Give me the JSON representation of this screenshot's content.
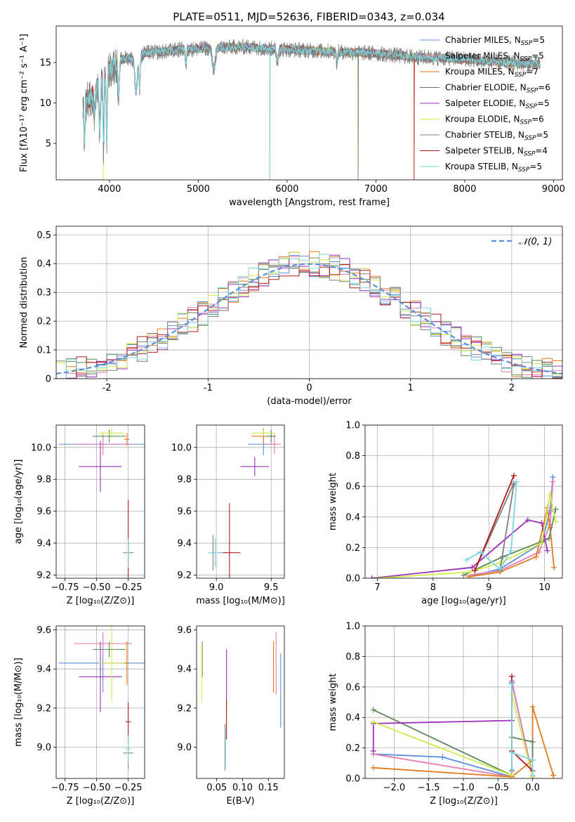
{
  "figure": {
    "title": "PLATE=0511, MJD=52636, FIBERID=0343, z=0.034"
  },
  "colors": {
    "Chabrier MILES": "#5b8ee0",
    "Salpeter MILES": "#e780b0",
    "Kroupa MILES": "#e57a1e",
    "Chabrier ELODIE": "#5a8a5a",
    "Salpeter ELODIE": "#9b30b8",
    "Kroupa ELODIE": "#cfec4a",
    "Chabrier STELIB": "#808080",
    "Salpeter STELIB": "#b21a1a",
    "Kroupa STELIB": "#7fd6e0",
    "dashed": "#5b8ee0",
    "grid": "#b0b0b0"
  },
  "chart_data": [
    {
      "id": "spectrum",
      "type": "line",
      "title": "PLATE=0511, MJD=52636, FIBERID=0343, z=0.034",
      "xlabel": "wavelength [Angstrom, rest frame]",
      "ylabel": "Flux [fλ10⁻¹⁷ erg cm⁻² s⁻¹ A⁻¹]",
      "xlim": [
        3400,
        9100
      ],
      "ylim": [
        0.5,
        19.5
      ],
      "xticks": [
        4000,
        5000,
        6000,
        7000,
        8000,
        9000
      ],
      "yticks": [
        5,
        10,
        15
      ],
      "grid": false,
      "legend_position": "top-right",
      "legend": [
        {
          "name": "Chabrier MILES",
          "text": "Chabrier MILES, N",
          "sub": "SSP",
          "tail": "=5"
        },
        {
          "name": "Salpeter MILES",
          "text": "Salpeter MILES, N",
          "sub": "SSP",
          "tail": "=5"
        },
        {
          "name": "Kroupa MILES",
          "text": "Kroupa MILES, N",
          "sub": "SSP",
          "tail": "=7"
        },
        {
          "name": "Chabrier ELODIE",
          "text": "Chabrier ELODIE, N",
          "sub": "SSP",
          "tail": "=6"
        },
        {
          "name": "Salpeter ELODIE",
          "text": "Salpeter ELODIE, N",
          "sub": "SSP",
          "tail": "=5"
        },
        {
          "name": "Kroupa ELODIE",
          "text": "Kroupa ELODIE, N",
          "sub": "SSP",
          "tail": "=6"
        },
        {
          "name": "Chabrier STELIB",
          "text": "Chabrier STELIB, N",
          "sub": "SSP",
          "tail": "=5"
        },
        {
          "name": "Salpeter STELIB",
          "text": "Salpeter STELIB, N",
          "sub": "SSP",
          "tail": "=4"
        },
        {
          "name": "Kroupa STELIB",
          "text": "Kroupa STELIB, N",
          "sub": "SSP",
          "tail": "=5"
        }
      ],
      "continuum": {
        "x": [
          3700,
          3800,
          3900,
          4000,
          4100,
          4200,
          4300,
          4400,
          4600,
          4800,
          5000,
          5200,
          5400,
          5600,
          5800,
          6000,
          6200,
          6400,
          6600,
          6800,
          7000,
          7200,
          7400,
          7600,
          7800,
          8000,
          8200,
          8400,
          8600,
          8800
        ],
        "y": [
          10.0,
          10.8,
          12.5,
          14.0,
          15.2,
          15.6,
          15.4,
          16.2,
          16.3,
          16.6,
          16.7,
          16.8,
          16.9,
          16.9,
          16.7,
          16.6,
          16.5,
          16.4,
          16.3,
          16.2,
          16.1,
          15.9,
          15.7,
          15.6,
          15.5,
          15.4,
          15.2,
          15.0,
          14.9,
          14.8
        ]
      },
      "dips": [
        {
          "x": 3720,
          "depth": 5,
          "width": 10
        },
        {
          "x": 3830,
          "depth": 3,
          "width": 10
        },
        {
          "x": 3890,
          "depth": 5.5,
          "width": 12
        },
        {
          "x": 3934,
          "depth": 9,
          "width": 8
        },
        {
          "x": 3970,
          "depth": 8,
          "width": 8
        },
        {
          "x": 4102,
          "depth": 5,
          "width": 12
        },
        {
          "x": 4300,
          "depth": 4,
          "width": 20
        },
        {
          "x": 4340,
          "depth": 4,
          "width": 10
        },
        {
          "x": 4861,
          "depth": 2,
          "width": 10
        },
        {
          "x": 5175,
          "depth": 2.5,
          "width": 25
        },
        {
          "x": 5890,
          "depth": 1.5,
          "width": 15
        },
        {
          "x": 6563,
          "depth": 1.5,
          "width": 10
        }
      ],
      "spikes_down": [
        {
          "x": 5805,
          "to": 0.5
        },
        {
          "x": 6800,
          "to": 0.5
        },
        {
          "x": 7430,
          "to": 0.5
        }
      ],
      "spike_up": {
        "x": 3930,
        "to": 0.5
      }
    },
    {
      "id": "residuals",
      "type": "line",
      "xlabel": "(data-model)/error",
      "ylabel": "Normed distribution",
      "xlim": [
        -2.5,
        2.5
      ],
      "ylim": [
        0,
        0.53
      ],
      "xticks": [
        -2,
        -1,
        0,
        1,
        2
      ],
      "yticks": [
        0.0,
        0.1,
        0.2,
        0.3,
        0.4,
        0.5
      ],
      "grid": true,
      "legend_position": "top-right",
      "legend": [
        {
          "name": "𝒩(0, 1)"
        }
      ],
      "bins": {
        "start": -2.5,
        "width": 0.1,
        "count": 50
      }
    },
    {
      "id": "age-vs-Z",
      "type": "scatter",
      "xlabel": "Z [log₁₀(Z/Z⊙)]",
      "ylabel": "age  [log₁₀(age/yr)]",
      "xlim": [
        -0.82,
        -0.12
      ],
      "ylim": [
        9.18,
        10.14
      ],
      "xticks": [
        -0.75,
        -0.5,
        -0.25
      ],
      "xticklabels": [
        "−0.75",
        "−0.50",
        "−0.25"
      ],
      "yticks": [
        9.2,
        9.4,
        9.6,
        9.8,
        10.0
      ],
      "yticklabels": [
        "9.2",
        "9.4",
        "9.6",
        "9.8",
        "10.0"
      ],
      "grid": true,
      "points": [
        {
          "series": "Chabrier MILES",
          "x": -0.45,
          "y": 10.02,
          "xerr": 0.35,
          "yerr": 0.04
        },
        {
          "series": "Salpeter MILES",
          "x": -0.45,
          "y": 10.02,
          "xerr": 0.23,
          "yerr": 0.07
        },
        {
          "series": "Kroupa MILES",
          "x": -0.26,
          "y": 10.05,
          "xerr": 0.02,
          "yerr": 0.04
        },
        {
          "series": "Chabrier ELODIE",
          "x": -0.4,
          "y": 10.07,
          "xerr": 0.13,
          "yerr": 0.04
        },
        {
          "series": "Salpeter ELODIE",
          "x": -0.47,
          "y": 9.88,
          "xerr": 0.17,
          "yerr": 0.16
        },
        {
          "series": "Kroupa ELODIE",
          "x": -0.38,
          "y": 10.09,
          "xerr": 0.1,
          "yerr": 0.03
        },
        {
          "series": "Chabrier STELIB",
          "x": -0.25,
          "y": 9.34,
          "xerr": 0.04,
          "yerr": 0.08
        },
        {
          "series": "Salpeter STELIB",
          "x": -0.25,
          "y": 9.34,
          "xerr": 0.02,
          "yerr": 0.33
        },
        {
          "series": "Kroupa STELIB",
          "x": -0.25,
          "y": 9.34,
          "xerr": 0.02,
          "yerr": 0.09
        }
      ]
    },
    {
      "id": "age-vs-mass",
      "type": "scatter",
      "xlabel": "mass [log₁₀(M/M⊙)]",
      "xlim": [
        8.82,
        9.62
      ],
      "ylim": [
        9.18,
        10.14
      ],
      "xticks": [
        9.0,
        9.5
      ],
      "xticklabels": [
        "9.0",
        "9.5"
      ],
      "yticks": [
        9.2,
        9.4,
        9.6,
        9.8,
        10.0
      ],
      "yticklabels": [
        "9.2",
        "9.4",
        "9.6",
        "9.8",
        "10.0"
      ],
      "grid": true,
      "points": [
        {
          "series": "Chabrier MILES",
          "x": 9.43,
          "y": 10.02,
          "xerr": 0.14,
          "yerr": 0.07
        },
        {
          "series": "Salpeter MILES",
          "x": 9.53,
          "y": 10.02,
          "xerr": 0.06,
          "yerr": 0.06
        },
        {
          "series": "Kroupa MILES",
          "x": 9.43,
          "y": 10.07,
          "xerr": 0.11,
          "yerr": 0.05
        },
        {
          "series": "Chabrier ELODIE",
          "x": 9.5,
          "y": 10.07,
          "xerr": 0.04,
          "yerr": 0.04
        },
        {
          "series": "Salpeter ELODIE",
          "x": 9.35,
          "y": 9.88,
          "xerr": 0.13,
          "yerr": 0.06
        },
        {
          "series": "Kroupa ELODIE",
          "x": 9.43,
          "y": 10.09,
          "xerr": 0.11,
          "yerr": 0.02
        },
        {
          "series": "Chabrier STELIB",
          "x": 8.97,
          "y": 9.34,
          "xerr": 0.02,
          "yerr": 0.11
        },
        {
          "series": "Salpeter STELIB",
          "x": 9.12,
          "y": 9.34,
          "xerr": 0.1,
          "yerr": 0.31
        },
        {
          "series": "Kroupa STELIB",
          "x": 8.99,
          "y": 9.34,
          "xerr": 0.07,
          "yerr": 0.09
        }
      ]
    },
    {
      "id": "weight-vs-age",
      "type": "line",
      "xlabel": "age  [log₁₀(age/yr)]",
      "ylabel": "mass weight",
      "xlim": [
        6.78,
        10.32
      ],
      "ylim": [
        0,
        1.0
      ],
      "xticks": [
        7,
        8,
        9,
        10
      ],
      "xticklabels": [
        "7",
        "8",
        "9",
        "10"
      ],
      "yticks": [
        0.0,
        0.2,
        0.4,
        0.6,
        0.8,
        1.0
      ],
      "yticklabels": [
        "0.0",
        "0.2",
        "0.4",
        "0.6",
        "0.8",
        "1.0"
      ],
      "grid": true,
      "series": [
        {
          "name": "Chabrier MILES",
          "x": [
            8.65,
            9.2,
            9.95,
            10.1,
            10.15
          ],
          "y": [
            0.01,
            0.06,
            0.23,
            0.44,
            0.66
          ]
        },
        {
          "name": "Salpeter MILES",
          "x": [
            8.65,
            9.2,
            9.9,
            10.1,
            10.15
          ],
          "y": [
            0.02,
            0.05,
            0.17,
            0.35,
            0.63
          ]
        },
        {
          "name": "Kroupa MILES",
          "x": [
            8.65,
            9.2,
            9.85,
            10.05,
            10.1,
            10.17
          ],
          "y": [
            0.01,
            0.04,
            0.14,
            0.46,
            0.33,
            0.07
          ]
        },
        {
          "name": "Chabrier ELODIE",
          "x": [
            8.55,
            9.25,
            9.95,
            10.08,
            10.2
          ],
          "y": [
            0.02,
            0.14,
            0.24,
            0.26,
            0.45
          ]
        },
        {
          "name": "Salpeter ELODIE",
          "x": [
            6.9,
            8.7,
            9.7,
            9.95,
            10.05
          ],
          "y": [
            0.0,
            0.07,
            0.38,
            0.36,
            0.18
          ]
        },
        {
          "name": "Kroupa ELODIE",
          "x": [
            7.0,
            8.65,
            9.2,
            9.95,
            10.1,
            10.2
          ],
          "y": [
            0.0,
            0.04,
            0.1,
            0.23,
            0.55,
            0.37
          ]
        },
        {
          "name": "Chabrier STELIB",
          "x": [
            8.75,
            9.45,
            9.45,
            9.2
          ],
          "y": [
            0.05,
            0.62,
            0.61,
            0.05
          ]
        },
        {
          "name": "Salpeter STELIB",
          "x": [
            8.75,
            9.45
          ],
          "y": [
            0.05,
            0.67
          ]
        },
        {
          "name": "Kroupa STELIB",
          "x": [
            8.6,
            8.85,
            9.2,
            9.4,
            9.5
          ],
          "y": [
            0.12,
            0.17,
            0.06,
            0.18,
            0.63
          ]
        }
      ]
    },
    {
      "id": "mass-vs-Z",
      "type": "scatter",
      "xlabel": "Z [log₁₀(Z/Z⊙)]",
      "ylabel": "mass [log₁₀(M/M⊙)]",
      "xlim": [
        -0.82,
        -0.12
      ],
      "ylim": [
        8.84,
        9.62
      ],
      "xticks": [
        -0.75,
        -0.5,
        -0.25
      ],
      "xticklabels": [
        "−0.75",
        "−0.50",
        "−0.25"
      ],
      "yticks": [
        9.0,
        9.2,
        9.4,
        9.6
      ],
      "yticklabels": [
        "9.0",
        "9.2",
        "9.4",
        "9.6"
      ],
      "grid": true,
      "points": [
        {
          "series": "Chabrier MILES",
          "x": -0.45,
          "y": 9.43,
          "xerr": 0.35,
          "yerr": 0.15
        },
        {
          "series": "Salpeter MILES",
          "x": -0.45,
          "y": 9.53,
          "xerr": 0.23,
          "yerr": 0.06
        },
        {
          "series": "Kroupa MILES",
          "x": -0.26,
          "y": 9.43,
          "xerr": 0.02,
          "yerr": 0.11
        },
        {
          "series": "Chabrier ELODIE",
          "x": -0.4,
          "y": 9.5,
          "xerr": 0.13,
          "yerr": 0.04
        },
        {
          "series": "Salpeter ELODIE",
          "x": -0.47,
          "y": 9.36,
          "xerr": 0.17,
          "yerr": 0.18
        },
        {
          "series": "Kroupa ELODIE",
          "x": -0.38,
          "y": 9.43,
          "xerr": 0.1,
          "yerr": 0.2
        },
        {
          "series": "Chabrier STELIB",
          "x": -0.25,
          "y": 8.97,
          "xerr": 0.04,
          "yerr": 0.08
        },
        {
          "series": "Salpeter STELIB",
          "x": -0.25,
          "y": 9.13,
          "xerr": 0.02,
          "yerr": 0.1
        },
        {
          "series": "Kroupa STELIB",
          "x": -0.25,
          "y": 8.99,
          "xerr": 0.02,
          "yerr": 0.07
        }
      ]
    },
    {
      "id": "mass-vs-ebv",
      "type": "scatter",
      "xlabel": "E(B-V)",
      "xlim": [
        0.011,
        0.181
      ],
      "ylim": [
        8.84,
        9.62
      ],
      "xticks": [
        0.05,
        0.1,
        0.15
      ],
      "xticklabels": [
        "0.05",
        "0.10",
        "0.15"
      ],
      "yticks": [
        9.0,
        9.2,
        9.4,
        9.6
      ],
      "yticklabels": [
        "9.0",
        "9.2",
        "9.4",
        "9.6"
      ],
      "grid": false,
      "points": [
        {
          "series": "Chabrier MILES",
          "x": 0.174,
          "y": 9.29,
          "xerr": 0.0,
          "yerr": 0.19
        },
        {
          "series": "Salpeter MILES",
          "x": 0.165,
          "y": 9.43,
          "xerr": 0.0,
          "yerr": 0.16
        },
        {
          "series": "Kroupa MILES",
          "x": 0.16,
          "y": 9.41,
          "xerr": 0.0,
          "yerr": 0.13
        },
        {
          "series": "Chabrier ELODIE",
          "x": 0.022,
          "y": 9.45,
          "xerr": 0.0,
          "yerr": 0.09
        },
        {
          "series": "Salpeter ELODIE",
          "x": 0.069,
          "y": 9.36,
          "xerr": 0.0,
          "yerr": 0.14
        },
        {
          "series": "Kroupa ELODIE",
          "x": 0.021,
          "y": 9.38,
          "xerr": 0.0,
          "yerr": 0.15
        },
        {
          "series": "Chabrier STELIB",
          "x": 0.066,
          "y": 9.0,
          "xerr": 0.0,
          "yerr": 0.12
        },
        {
          "series": "Salpeter STELIB",
          "x": 0.069,
          "y": 9.14,
          "xerr": 0.0,
          "yerr": 0.1
        },
        {
          "series": "Kroupa STELIB",
          "x": 0.067,
          "y": 9.0,
          "xerr": 0.0,
          "yerr": 0.1
        }
      ]
    },
    {
      "id": "weight-vs-Z",
      "type": "line",
      "xlabel": "Z [log₁₀(Z/Z⊙)]",
      "ylabel": "mass weight",
      "xlim": [
        -2.42,
        0.43
      ],
      "ylim": [
        0,
        1.0
      ],
      "xticks": [
        -2.0,
        -1.5,
        -1.0,
        -0.5,
        0.0
      ],
      "xticklabels": [
        "−2.0",
        "−1.5",
        "−1.0",
        "−0.5",
        "0.0"
      ],
      "yticks": [
        0.0,
        0.2,
        0.4,
        0.6,
        0.8,
        1.0
      ],
      "yticklabels": [
        "0.0",
        "0.2",
        "0.4",
        "0.6",
        "0.8",
        "1.0"
      ],
      "grid": true,
      "series": [
        {
          "name": "Chabrier MILES",
          "x": [
            -2.3,
            -1.3,
            -0.3,
            -0.3,
            0.0
          ],
          "y": [
            0.16,
            0.14,
            0.01,
            0.63,
            0.02
          ]
        },
        {
          "name": "Salpeter MILES",
          "x": [
            -2.3,
            -0.3,
            -0.3,
            0.0
          ],
          "y": [
            0.16,
            0.01,
            0.64,
            0.02
          ]
        },
        {
          "name": "Kroupa MILES",
          "x": [
            -2.3,
            -0.3,
            0.0,
            0.0,
            0.3,
            0.3
          ],
          "y": [
            0.07,
            0.01,
            0.12,
            0.47,
            0.02,
            0.02
          ]
        },
        {
          "name": "Chabrier ELODIE",
          "x": [
            -2.3,
            -0.3,
            -0.3,
            0.0,
            0.0
          ],
          "y": [
            0.45,
            0.02,
            0.27,
            0.24,
            0.01
          ]
        },
        {
          "name": "Salpeter ELODIE",
          "x": [
            -2.3,
            -2.3,
            -0.3,
            -0.3
          ],
          "y": [
            0.18,
            0.36,
            0.38,
            0.05
          ]
        },
        {
          "name": "Kroupa ELODIE",
          "x": [
            -2.3,
            -0.3,
            -0.3,
            0.0
          ],
          "y": [
            0.37,
            0.02,
            0.55,
            0.01
          ]
        },
        {
          "name": "Chabrier STELIB",
          "x": [
            -0.3,
            -0.3
          ],
          "y": [
            0.62,
            0.05
          ]
        },
        {
          "name": "Salpeter STELIB",
          "x": [
            -0.3,
            -0.3,
            0.0
          ],
          "y": [
            0.67,
            0.18,
            0.05
          ]
        },
        {
          "name": "Kroupa STELIB",
          "x": [
            -0.3,
            -0.3,
            -0.3,
            0.0,
            0.0
          ],
          "y": [
            0.62,
            0.06,
            0.17,
            0.12,
            0.02
          ]
        }
      ]
    }
  ]
}
